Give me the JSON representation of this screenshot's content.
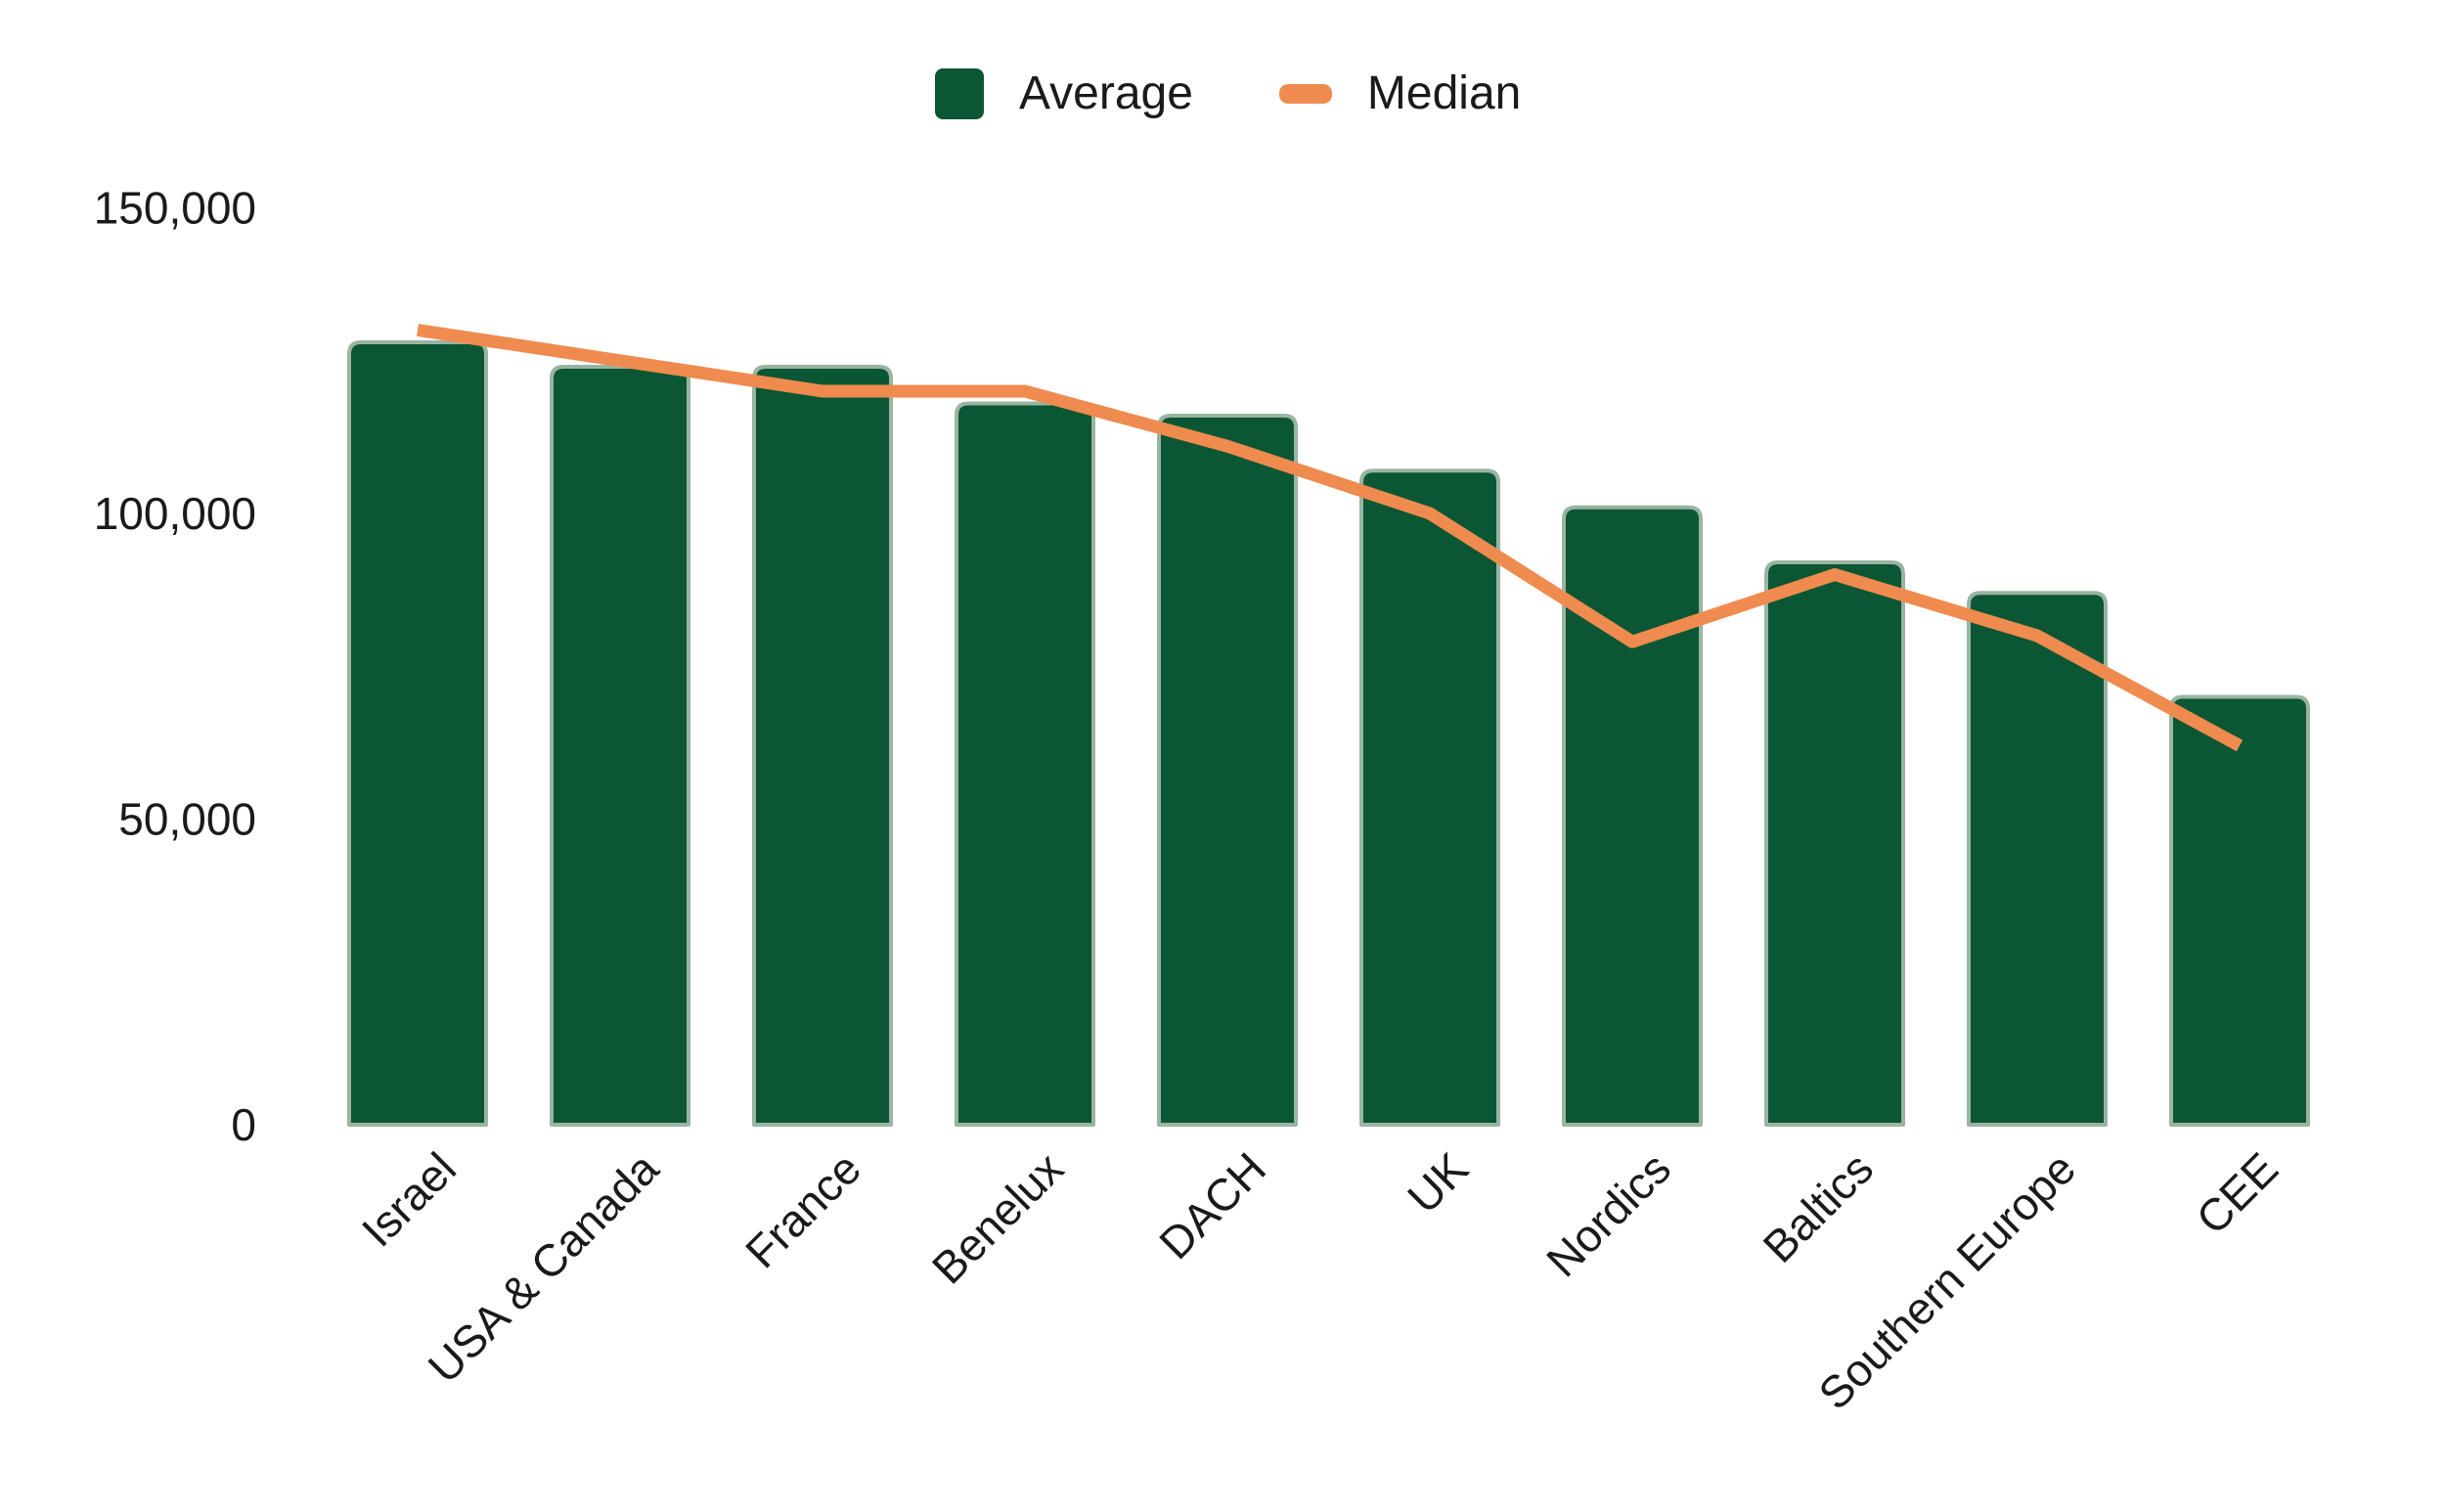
{
  "chart_data": {
    "type": "combo_bar_line",
    "title": "",
    "categories": [
      "Israel",
      "USA & Canada",
      "France",
      "Benelux",
      "DACH",
      "UK",
      "Nordics",
      "Baltics",
      "Southern Europe",
      "CEE"
    ],
    "series": [
      {
        "name": "Average",
        "type": "bar",
        "color": "#0b5633",
        "border_color": "#9ab4a2",
        "values": [
          128000,
          124000,
          124000,
          118000,
          116000,
          107000,
          101000,
          92000,
          87000,
          70000
        ]
      },
      {
        "name": "Median",
        "type": "line",
        "color": "#ef8b4f",
        "values": [
          130000,
          125000,
          120000,
          120000,
          111000,
          100000,
          79000,
          90000,
          80000,
          62000
        ]
      }
    ],
    "xlabel": "",
    "ylabel": "",
    "ylim": [
      0,
      150000
    ],
    "yticks": [
      {
        "value": 0,
        "label": "0"
      },
      {
        "value": 50000,
        "label": "50,000"
      },
      {
        "value": 100000,
        "label": "100,000"
      },
      {
        "value": 150000,
        "label": "150,000"
      }
    ],
    "grid": false,
    "legend_position": "top",
    "background_color": "#ffffff",
    "text_color": "#1a1a1a"
  }
}
